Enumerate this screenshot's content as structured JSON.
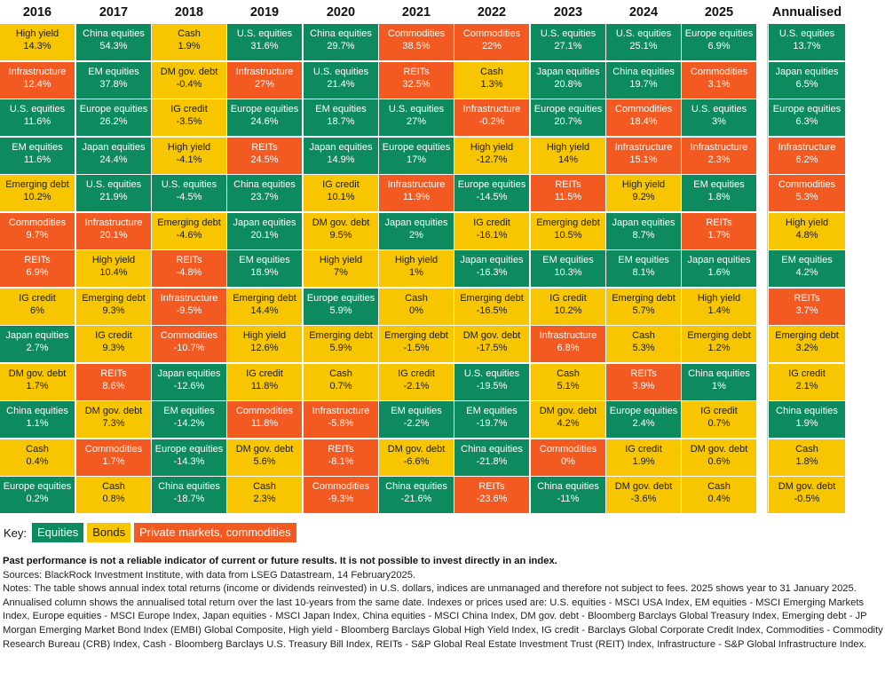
{
  "colors": {
    "equities": "#0e8a5f",
    "bonds": "#f7c600",
    "private_markets": "#f35a22"
  },
  "chart_data": {
    "type": "table",
    "columns": [
      "2016",
      "2017",
      "2018",
      "2019",
      "2020",
      "2021",
      "2022",
      "2023",
      "2024",
      "2025",
      "Annualised"
    ],
    "rows": [
      [
        [
          "High yield",
          "14.3%",
          "B"
        ],
        [
          "China equities",
          "54.3%",
          "E"
        ],
        [
          "Cash",
          "1.9%",
          "B"
        ],
        [
          "U.S. equities",
          "31.6%",
          "E"
        ],
        [
          "China equities",
          "29.7%",
          "E"
        ],
        [
          "Commodities",
          "38.5%",
          "P"
        ],
        [
          "Commodities",
          "22%",
          "P"
        ],
        [
          "U.S. equities",
          "27.1%",
          "E"
        ],
        [
          "U.S. equities",
          "25.1%",
          "E"
        ],
        [
          "Europe equities",
          "6.9%",
          "E"
        ],
        [
          "U.S. equities",
          "13.7%",
          "E"
        ]
      ],
      [
        [
          "Infrastructure",
          "12.4%",
          "P"
        ],
        [
          "EM equities",
          "37.8%",
          "E"
        ],
        [
          "DM gov. debt",
          "-0.4%",
          "B"
        ],
        [
          "Infrastructure",
          "27%",
          "P"
        ],
        [
          "U.S. equities",
          "21.4%",
          "E"
        ],
        [
          "REITs",
          "32.5%",
          "P"
        ],
        [
          "Cash",
          "1.3%",
          "B"
        ],
        [
          "Japan equities",
          "20.8%",
          "E"
        ],
        [
          "China equities",
          "19.7%",
          "E"
        ],
        [
          "Commodities",
          "3.1%",
          "P"
        ],
        [
          "Japan equities",
          "6.5%",
          "E"
        ]
      ],
      [
        [
          "U.S. equities",
          "11.6%",
          "E"
        ],
        [
          "Europe equities",
          "26.2%",
          "E"
        ],
        [
          "IG credit",
          "-3.5%",
          "B"
        ],
        [
          "Europe equities",
          "24.6%",
          "E"
        ],
        [
          "EM equities",
          "18.7%",
          "E"
        ],
        [
          "U.S. equities",
          "27%",
          "E"
        ],
        [
          "Infrastructure",
          "-0.2%",
          "P"
        ],
        [
          "Europe equities",
          "20.7%",
          "E"
        ],
        [
          "Commodities",
          "18.4%",
          "P"
        ],
        [
          "U.S. equities",
          "3%",
          "E"
        ],
        [
          "Europe equities",
          "6.3%",
          "E"
        ]
      ],
      [
        [
          "EM equities",
          "11.6%",
          "E"
        ],
        [
          "Japan equities",
          "24.4%",
          "E"
        ],
        [
          "High yield",
          "-4.1%",
          "B"
        ],
        [
          "REITs",
          "24.5%",
          "P"
        ],
        [
          "Japan equities",
          "14.9%",
          "E"
        ],
        [
          "Europe equities",
          "17%",
          "E"
        ],
        [
          "High yield",
          "-12.7%",
          "B"
        ],
        [
          "High yield",
          "14%",
          "B"
        ],
        [
          "Infrastructure",
          "15.1%",
          "P"
        ],
        [
          "Infrastructure",
          "2.3%",
          "P"
        ],
        [
          "Infrastructure",
          "6.2%",
          "P"
        ]
      ],
      [
        [
          "Emerging debt",
          "10.2%",
          "B"
        ],
        [
          "U.S. equities",
          "21.9%",
          "E"
        ],
        [
          "U.S. equities",
          "-4.5%",
          "E"
        ],
        [
          "China equities",
          "23.7%",
          "E"
        ],
        [
          "IG credit",
          "10.1%",
          "B"
        ],
        [
          "Infrastructure",
          "11.9%",
          "P"
        ],
        [
          "Europe equities",
          "-14.5%",
          "E"
        ],
        [
          "REITs",
          "11.5%",
          "P"
        ],
        [
          "High yield",
          "9.2%",
          "B"
        ],
        [
          "EM equities",
          "1.8%",
          "E"
        ],
        [
          "Commodities",
          "5.3%",
          "P"
        ]
      ],
      [
        [
          "Commodities",
          "9.7%",
          "P"
        ],
        [
          "Infrastructure",
          "20.1%",
          "P"
        ],
        [
          "Emerging debt",
          "-4.6%",
          "B"
        ],
        [
          "Japan equities",
          "20.1%",
          "E"
        ],
        [
          "DM gov. debt",
          "9.5%",
          "B"
        ],
        [
          "Japan equities",
          "2%",
          "E"
        ],
        [
          "IG credit",
          "-16.1%",
          "B"
        ],
        [
          "Emerging debt",
          "10.5%",
          "B"
        ],
        [
          "Japan equities",
          "8.7%",
          "E"
        ],
        [
          "REITs",
          "1.7%",
          "P"
        ],
        [
          "High yield",
          "4.8%",
          "B"
        ]
      ],
      [
        [
          "REITs",
          "6.9%",
          "P"
        ],
        [
          "High yield",
          "10.4%",
          "B"
        ],
        [
          "REITs",
          "-4.8%",
          "P"
        ],
        [
          "EM equities",
          "18.9%",
          "E"
        ],
        [
          "High yield",
          "7%",
          "B"
        ],
        [
          "High yield",
          "1%",
          "B"
        ],
        [
          "Japan equities",
          "-16.3%",
          "E"
        ],
        [
          "EM equities",
          "10.3%",
          "E"
        ],
        [
          "EM equities",
          "8.1%",
          "E"
        ],
        [
          "Japan equities",
          "1.6%",
          "E"
        ],
        [
          "EM equities",
          "4.2%",
          "E"
        ]
      ],
      [
        [
          "IG credit",
          "6%",
          "B"
        ],
        [
          "Emerging debt",
          "9.3%",
          "B"
        ],
        [
          "Infrastructure",
          "-9.5%",
          "P"
        ],
        [
          "Emerging debt",
          "14.4%",
          "B"
        ],
        [
          "Europe equities",
          "5.9%",
          "E"
        ],
        [
          "Cash",
          "0%",
          "B"
        ],
        [
          "Emerging debt",
          "-16.5%",
          "B"
        ],
        [
          "IG credit",
          "10.2%",
          "B"
        ],
        [
          "Emerging debt",
          "5.7%",
          "B"
        ],
        [
          "High yield",
          "1.4%",
          "B"
        ],
        [
          "REITs",
          "3.7%",
          "P"
        ]
      ],
      [
        [
          "Japan equities",
          "2.7%",
          "E"
        ],
        [
          "IG credit",
          "9.3%",
          "B"
        ],
        [
          "Commodities",
          "-10.7%",
          "P"
        ],
        [
          "High yield",
          "12.6%",
          "B"
        ],
        [
          "Emerging debt",
          "5.9%",
          "B"
        ],
        [
          "Emerging debt",
          "-1.5%",
          "B"
        ],
        [
          "DM gov. debt",
          "-17.5%",
          "B"
        ],
        [
          "Infrastructure",
          "6.8%",
          "P"
        ],
        [
          "Cash",
          "5.3%",
          "B"
        ],
        [
          "Emerging debt",
          "1.2%",
          "B"
        ],
        [
          "Emerging debt",
          "3.2%",
          "B"
        ]
      ],
      [
        [
          "DM gov. debt",
          "1.7%",
          "B"
        ],
        [
          "REITs",
          "8.6%",
          "P"
        ],
        [
          "Japan equities",
          "-12.6%",
          "E"
        ],
        [
          "IG credit",
          "11.8%",
          "B"
        ],
        [
          "Cash",
          "0.7%",
          "B"
        ],
        [
          "IG credit",
          "-2.1%",
          "B"
        ],
        [
          "U.S. equities",
          "-19.5%",
          "E"
        ],
        [
          "Cash",
          "5.1%",
          "B"
        ],
        [
          "REITs",
          "3.9%",
          "P"
        ],
        [
          "China equities",
          "1%",
          "E"
        ],
        [
          "IG credit",
          "2.1%",
          "B"
        ]
      ],
      [
        [
          "China equities",
          "1.1%",
          "E"
        ],
        [
          "DM gov. debt",
          "7.3%",
          "B"
        ],
        [
          "EM equities",
          "-14.2%",
          "E"
        ],
        [
          "Commodities",
          "11.8%",
          "P"
        ],
        [
          "Infrastructure",
          "-5.8%",
          "P"
        ],
        [
          "EM equities",
          "-2.2%",
          "E"
        ],
        [
          "EM equities",
          "-19.7%",
          "E"
        ],
        [
          "DM gov. debt",
          "4.2%",
          "B"
        ],
        [
          "Europe equities",
          "2.4%",
          "E"
        ],
        [
          "IG credit",
          "0.7%",
          "B"
        ],
        [
          "China equities",
          "1.9%",
          "E"
        ]
      ],
      [
        [
          "Cash",
          "0.4%",
          "B"
        ],
        [
          "Commodities",
          "1.7%",
          "P"
        ],
        [
          "Europe equities",
          "-14.3%",
          "E"
        ],
        [
          "DM gov. debt",
          "5.6%",
          "B"
        ],
        [
          "REITs",
          "-8.1%",
          "P"
        ],
        [
          "DM gov. debt",
          "-6.6%",
          "B"
        ],
        [
          "China equities",
          "-21.8%",
          "E"
        ],
        [
          "Commodities",
          "0%",
          "P"
        ],
        [
          "IG credit",
          "1.9%",
          "B"
        ],
        [
          "DM gov. debt",
          "0.6%",
          "B"
        ],
        [
          "Cash",
          "1.8%",
          "B"
        ]
      ],
      [
        [
          "Europe equities",
          "0.2%",
          "E"
        ],
        [
          "Cash",
          "0.8%",
          "B"
        ],
        [
          "China equities",
          "-18.7%",
          "E"
        ],
        [
          "Cash",
          "2.3%",
          "B"
        ],
        [
          "Commodities",
          "-9.3%",
          "P"
        ],
        [
          "China equities",
          "-21.6%",
          "E"
        ],
        [
          "REITs",
          "-23.6%",
          "P"
        ],
        [
          "China equities",
          "-11%",
          "E"
        ],
        [
          "DM gov. debt",
          "-3.6%",
          "B"
        ],
        [
          "Cash",
          "0.4%",
          "B"
        ],
        [
          "DM gov. debt",
          "-0.5%",
          "B"
        ]
      ]
    ]
  },
  "key": {
    "label": "Key:",
    "equities": "Equities",
    "bonds": "Bonds",
    "private_markets": "Private markets, commodities"
  },
  "notes": {
    "disclaimer": "Past performance is not a reliable indicator of current or future results. It is not possible to invest directly in an index.",
    "sources": "Sources: BlackRock Investment Institute, with data from LSEG Datastream, 14 February2025.",
    "notes_text": "Notes: The table shows annual index total returns (income or dividends reinvested) in U.S. dollars, indices are unmanaged and therefore not subject to fees. 2025 shows year to 31 January 2025. Annualised column shows the annualised total return over the last 10-years from the same date. Indexes or prices used are: U.S. equities - MSCI USA Index, EM equities - MSCI Emerging Markets Index, Europe equities - MSCI Europe Index, Japan equities - MSCI Japan Index, China equities - MSCI China Index, DM gov. debt - Bloomberg Barclays Global Treasury Index, Emerging debt - JP Morgan Emerging Market Bond Index (EMBI) Global Composite, High yield - Bloomberg Barclays Global High Yield Index, IG credit - Barclays Global Corporate Credit Index, Commodities - Commodity Research Bureau (CRB) Index, Cash - Bloomberg Barclays U.S. Treasury Bill Index, REITs - S&P Global Real Estate Investment Trust (REIT) Index, Infrastructure - S&P Global Infrastructure Index."
  }
}
